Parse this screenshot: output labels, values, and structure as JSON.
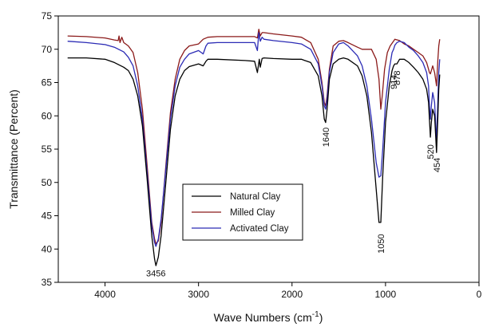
{
  "chart_data": {
    "type": "line",
    "title": "",
    "xlabel": "Wave Numbers (cm",
    "xlabel_sup": "-1",
    "xlabel_end": ")",
    "ylabel": "Transmittance (Percent)",
    "xlim": [
      4500,
      0
    ],
    "ylim": [
      35,
      75
    ],
    "x_ticks": [
      4000,
      3000,
      2000,
      1000,
      0
    ],
    "y_ticks": [
      35,
      40,
      45,
      50,
      55,
      60,
      65,
      70,
      75
    ],
    "grid": false,
    "legend_position": "lower-middle",
    "series": [
      {
        "name": "Natural Clay",
        "color": "#000000",
        "points": [
          [
            4400,
            68.7
          ],
          [
            4200,
            68.7
          ],
          [
            4000,
            68.5
          ],
          [
            3900,
            68.0
          ],
          [
            3800,
            67.3
          ],
          [
            3750,
            66.8
          ],
          [
            3700,
            65.5
          ],
          [
            3650,
            63.0
          ],
          [
            3600,
            58.5
          ],
          [
            3550,
            50.5
          ],
          [
            3500,
            42.0
          ],
          [
            3470,
            38.5
          ],
          [
            3456,
            37.5
          ],
          [
            3430,
            38.8
          ],
          [
            3400,
            42.0
          ],
          [
            3350,
            50.0
          ],
          [
            3300,
            58.0
          ],
          [
            3250,
            63.0
          ],
          [
            3200,
            65.5
          ],
          [
            3150,
            66.8
          ],
          [
            3100,
            67.4
          ],
          [
            3000,
            67.8
          ],
          [
            2950,
            67.5
          ],
          [
            2920,
            68.2
          ],
          [
            2900,
            68.5
          ],
          [
            2800,
            68.5
          ],
          [
            2500,
            68.3
          ],
          [
            2400,
            68.2
          ],
          [
            2370,
            66.5
          ],
          [
            2350,
            68.5
          ],
          [
            2340,
            67.3
          ],
          [
            2320,
            68.6
          ],
          [
            2300,
            68.7
          ],
          [
            2200,
            68.6
          ],
          [
            2000,
            68.5
          ],
          [
            1900,
            68.5
          ],
          [
            1800,
            68.0
          ],
          [
            1720,
            66.0
          ],
          [
            1680,
            63.0
          ],
          [
            1655,
            59.5
          ],
          [
            1640,
            59.0
          ],
          [
            1625,
            61.0
          ],
          [
            1600,
            65.5
          ],
          [
            1560,
            67.8
          ],
          [
            1500,
            68.5
          ],
          [
            1450,
            68.7
          ],
          [
            1400,
            68.5
          ],
          [
            1300,
            67.5
          ],
          [
            1250,
            66.0
          ],
          [
            1200,
            63.0
          ],
          [
            1150,
            57.5
          ],
          [
            1100,
            49.0
          ],
          [
            1070,
            44.0
          ],
          [
            1050,
            44.0
          ],
          [
            1030,
            51.0
          ],
          [
            1000,
            59.0
          ],
          [
            960,
            64.5
          ],
          [
            930,
            66.8
          ],
          [
            914,
            67.5
          ],
          [
            900,
            67.8
          ],
          [
            878,
            67.8
          ],
          [
            850,
            68.5
          ],
          [
            800,
            68.5
          ],
          [
            750,
            68.0
          ],
          [
            700,
            67.3
          ],
          [
            650,
            66.5
          ],
          [
            600,
            65.5
          ],
          [
            560,
            64.0
          ],
          [
            540,
            62.0
          ],
          [
            530,
            59.5
          ],
          [
            520,
            56.8
          ],
          [
            510,
            59.0
          ],
          [
            495,
            61.0
          ],
          [
            475,
            60.0
          ],
          [
            454,
            54.5
          ],
          [
            440,
            60.0
          ],
          [
            430,
            64.0
          ],
          [
            420,
            66.2
          ]
        ]
      },
      {
        "name": "Milled Clay",
        "color": "#8b1a1a",
        "points": [
          [
            4400,
            72.0
          ],
          [
            4200,
            71.9
          ],
          [
            4000,
            71.7
          ],
          [
            3900,
            71.4
          ],
          [
            3860,
            71.3
          ],
          [
            3850,
            72.0
          ],
          [
            3840,
            71.0
          ],
          [
            3820,
            71.8
          ],
          [
            3800,
            71.0
          ],
          [
            3750,
            70.5
          ],
          [
            3700,
            69.5
          ],
          [
            3650,
            66.5
          ],
          [
            3600,
            61.0
          ],
          [
            3550,
            52.5
          ],
          [
            3500,
            44.0
          ],
          [
            3470,
            41.5
          ],
          [
            3456,
            40.8
          ],
          [
            3430,
            41.2
          ],
          [
            3400,
            44.0
          ],
          [
            3350,
            52.5
          ],
          [
            3300,
            60.5
          ],
          [
            3250,
            65.5
          ],
          [
            3200,
            68.5
          ],
          [
            3150,
            69.8
          ],
          [
            3100,
            70.5
          ],
          [
            3000,
            70.8
          ],
          [
            2950,
            71.5
          ],
          [
            2900,
            71.8
          ],
          [
            2800,
            71.9
          ],
          [
            2500,
            71.9
          ],
          [
            2400,
            71.9
          ],
          [
            2370,
            71.7
          ],
          [
            2355,
            73.0
          ],
          [
            2340,
            72.0
          ],
          [
            2320,
            72.5
          ],
          [
            2300,
            72.5
          ],
          [
            2200,
            72.3
          ],
          [
            2000,
            72.0
          ],
          [
            1900,
            71.8
          ],
          [
            1800,
            71.0
          ],
          [
            1720,
            68.5
          ],
          [
            1680,
            65.0
          ],
          [
            1655,
            62.0
          ],
          [
            1640,
            61.5
          ],
          [
            1625,
            63.0
          ],
          [
            1600,
            67.0
          ],
          [
            1560,
            70.5
          ],
          [
            1500,
            71.2
          ],
          [
            1450,
            71.3
          ],
          [
            1400,
            71.0
          ],
          [
            1300,
            70.3
          ],
          [
            1250,
            70.0
          ],
          [
            1200,
            70.0
          ],
          [
            1150,
            70.0
          ],
          [
            1100,
            68.5
          ],
          [
            1070,
            65.5
          ],
          [
            1050,
            61.0
          ],
          [
            1035,
            63.0
          ],
          [
            1010,
            67.0
          ],
          [
            980,
            69.5
          ],
          [
            950,
            70.5
          ],
          [
            900,
            71.5
          ],
          [
            850,
            71.3
          ],
          [
            800,
            70.8
          ],
          [
            750,
            70.5
          ],
          [
            700,
            70.0
          ],
          [
            650,
            69.5
          ],
          [
            600,
            69.0
          ],
          [
            560,
            68.0
          ],
          [
            540,
            67.0
          ],
          [
            530,
            66.5
          ],
          [
            520,
            66.3
          ],
          [
            510,
            66.8
          ],
          [
            495,
            67.5
          ],
          [
            475,
            66.5
          ],
          [
            454,
            64.5
          ],
          [
            440,
            68.5
          ],
          [
            430,
            70.5
          ],
          [
            420,
            71.5
          ]
        ]
      },
      {
        "name": "Activated Clay",
        "color": "#2b2bb5",
        "points": [
          [
            4400,
            71.2
          ],
          [
            4200,
            71.0
          ],
          [
            4000,
            70.7
          ],
          [
            3900,
            70.3
          ],
          [
            3800,
            69.6
          ],
          [
            3750,
            68.8
          ],
          [
            3700,
            67.5
          ],
          [
            3650,
            64.5
          ],
          [
            3600,
            59.5
          ],
          [
            3550,
            51.5
          ],
          [
            3500,
            43.5
          ],
          [
            3470,
            41.0
          ],
          [
            3456,
            40.4
          ],
          [
            3430,
            41.5
          ],
          [
            3400,
            44.5
          ],
          [
            3350,
            52.0
          ],
          [
            3300,
            59.5
          ],
          [
            3250,
            64.5
          ],
          [
            3200,
            67.3
          ],
          [
            3150,
            68.5
          ],
          [
            3100,
            69.3
          ],
          [
            3000,
            69.8
          ],
          [
            2950,
            69.3
          ],
          [
            2920,
            70.5
          ],
          [
            2900,
            70.9
          ],
          [
            2800,
            71.0
          ],
          [
            2500,
            71.0
          ],
          [
            2400,
            71.0
          ],
          [
            2370,
            69.8
          ],
          [
            2355,
            72.5
          ],
          [
            2340,
            71.2
          ],
          [
            2320,
            71.8
          ],
          [
            2300,
            71.5
          ],
          [
            2200,
            71.3
          ],
          [
            2000,
            71.0
          ],
          [
            1900,
            70.8
          ],
          [
            1800,
            70.0
          ],
          [
            1720,
            67.8
          ],
          [
            1680,
            64.5
          ],
          [
            1655,
            61.5
          ],
          [
            1640,
            61.0
          ],
          [
            1625,
            62.5
          ],
          [
            1600,
            66.5
          ],
          [
            1560,
            69.5
          ],
          [
            1500,
            70.8
          ],
          [
            1450,
            71.0
          ],
          [
            1400,
            70.5
          ],
          [
            1300,
            69.0
          ],
          [
            1250,
            67.5
          ],
          [
            1200,
            64.5
          ],
          [
            1150,
            59.5
          ],
          [
            1100,
            53.0
          ],
          [
            1070,
            50.8
          ],
          [
            1050,
            51.0
          ],
          [
            1030,
            55.0
          ],
          [
            1000,
            62.0
          ],
          [
            960,
            67.0
          ],
          [
            930,
            69.5
          ],
          [
            914,
            70.0
          ],
          [
            900,
            70.6
          ],
          [
            878,
            71.0
          ],
          [
            850,
            71.2
          ],
          [
            800,
            71.0
          ],
          [
            750,
            70.3
          ],
          [
            700,
            69.8
          ],
          [
            650,
            69.0
          ],
          [
            600,
            68.0
          ],
          [
            560,
            66.5
          ],
          [
            540,
            64.5
          ],
          [
            530,
            61.5
          ],
          [
            520,
            59.5
          ],
          [
            510,
            61.5
          ],
          [
            495,
            63.5
          ],
          [
            475,
            62.0
          ],
          [
            454,
            56.0
          ],
          [
            440,
            62.5
          ],
          [
            430,
            66.5
          ],
          [
            420,
            68.5
          ]
        ]
      }
    ],
    "annotations": [
      {
        "text": "3456",
        "x": 3456,
        "y": 36.4,
        "rotated": false
      },
      {
        "text": "1640",
        "x": 1640,
        "y": 56.8,
        "rotated": true
      },
      {
        "text": "1050",
        "x": 1050,
        "y": 40.8,
        "rotated": true
      },
      {
        "text": "914",
        "x": 914,
        "y": 65.1,
        "rotated": true
      },
      {
        "text": "878",
        "x": 878,
        "y": 65.7,
        "rotated": true
      },
      {
        "text": "520",
        "x": 520,
        "y": 54.6,
        "rotated": true
      },
      {
        "text": "454",
        "x": 454,
        "y": 52.6,
        "rotated": true
      }
    ]
  }
}
